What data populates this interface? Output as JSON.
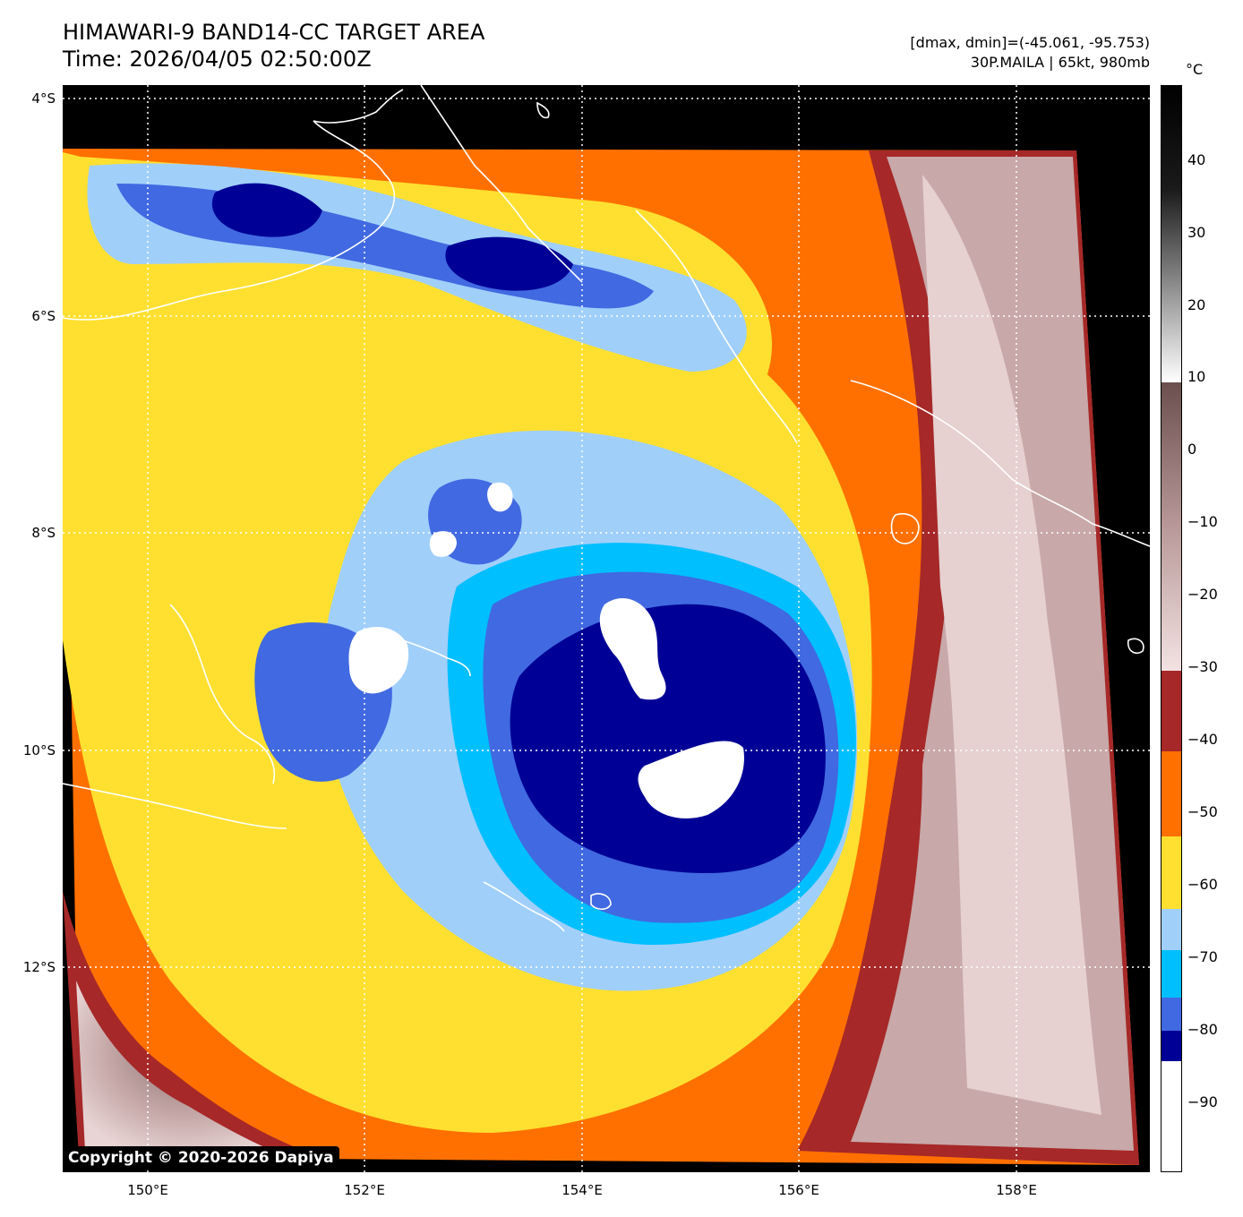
{
  "header": {
    "title_line1": "HIMAWARI-9 BAND14-CC TARGET AREA",
    "title_line2": "Time: 2026/04/05 02:50:00Z",
    "info_line1": "[dmax, dmin]=(-45.061, -95.753)",
    "info_line2": "30P.MAILA | 65kt, 980mb"
  },
  "axes": {
    "lat_labels": [
      "4°S",
      "6°S",
      "8°S",
      "10°S",
      "12°S"
    ],
    "lon_labels": [
      "150°E",
      "152°E",
      "154°E",
      "156°E",
      "158°E"
    ]
  },
  "colorbar": {
    "unit": "°C",
    "ticks": [
      "40",
      "30",
      "20",
      "10",
      "0",
      "−10",
      "−20",
      "−30",
      "−40",
      "−50",
      "−60",
      "−70",
      "−80",
      "−90"
    ],
    "colors": {
      "below_minus85": "#ffffff",
      "minus85_to_minus80": "#000096",
      "minus80_to_minus75": "#4169e1",
      "minus75_to_minus70": "#00bfff",
      "minus70_to_minus65": "#a0cffa",
      "minus65_to_minus55": "#ffe030",
      "minus55_to_minus45": "#ff7000",
      "minus45_to_minus34": "#a62828"
    }
  },
  "copyright": "Copyright © 2020-2026 Dapiya"
}
